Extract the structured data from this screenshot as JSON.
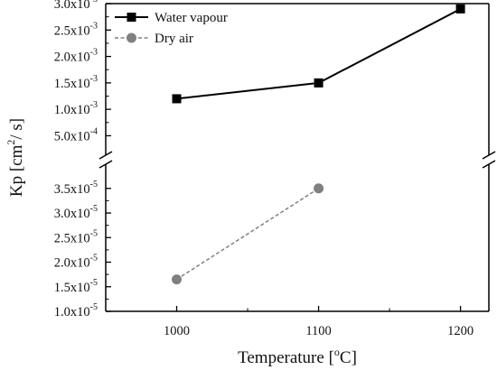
{
  "chart_data": {
    "type": "line",
    "xlabel": {
      "base": "Temperature [",
      "sup": "o",
      "tail": "C]"
    },
    "ylabel": {
      "base": "Kp [cm",
      "sup": "2",
      "tail": "/ s]"
    },
    "x_ticks": [
      1000,
      1100,
      1200
    ],
    "xlim": [
      950,
      1220
    ],
    "y_axis_break": true,
    "upper_panel": {
      "ylim": [
        0.0002,
        0.003
      ],
      "ticks": [
        {
          "value": 0.0005,
          "mantissa": "5.0x10",
          "exp": "-4"
        },
        {
          "value": 0.001,
          "mantissa": "1.0x10",
          "exp": "-3"
        },
        {
          "value": 0.0015,
          "mantissa": "1.5x10",
          "exp": "-3"
        },
        {
          "value": 0.002,
          "mantissa": "2.0x10",
          "exp": "-3"
        },
        {
          "value": 0.0025,
          "mantissa": "2.5x10",
          "exp": "-3"
        },
        {
          "value": 0.003,
          "mantissa": "3.0x10",
          "exp": "-3"
        }
      ]
    },
    "lower_panel": {
      "ylim": [
        1e-05,
        3.9e-05
      ],
      "ticks": [
        {
          "value": 1e-05,
          "mantissa": "1.0x10",
          "exp": "-5"
        },
        {
          "value": 1.5e-05,
          "mantissa": "1.5x10",
          "exp": "-5"
        },
        {
          "value": 2e-05,
          "mantissa": "2.0x10",
          "exp": "-5"
        },
        {
          "value": 2.5e-05,
          "mantissa": "2.5x10",
          "exp": "-5"
        },
        {
          "value": 3e-05,
          "mantissa": "3.0x10",
          "exp": "-5"
        },
        {
          "value": 3.5e-05,
          "mantissa": "3.5x10",
          "exp": "-5"
        }
      ]
    },
    "series": [
      {
        "name": "Water vapour",
        "panel": "upper",
        "marker": "square",
        "line": "solid",
        "color": "#000000",
        "x": [
          1000,
          1100,
          1200
        ],
        "y": [
          0.0012,
          0.0015,
          0.0029
        ]
      },
      {
        "name": "Dry air",
        "panel": "lower",
        "marker": "circle",
        "line": "dashed",
        "color": "#808080",
        "x": [
          1000,
          1100
        ],
        "y": [
          1.65e-05,
          3.5e-05
        ]
      }
    ],
    "legend_position": "top-left"
  }
}
